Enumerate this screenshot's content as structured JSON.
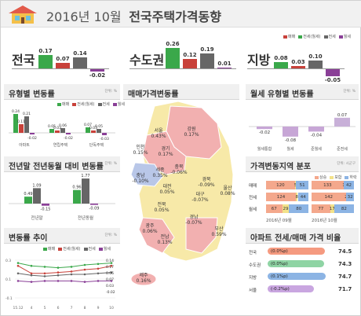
{
  "header": {
    "period": "2016년 10월",
    "title": "전국주택가격동향"
  },
  "colors": {
    "sale": "#3aa84a",
    "jeonse": "#c8413a",
    "monthly": "#666666",
    "neg": "#8a3f97",
    "up_strong": "#f2b0b0",
    "up_mid": "#f7e9a8",
    "down": "#b9c7e8"
  },
  "legend": {
    "sale": "매매",
    "jeonse": "전세(월세)",
    "monthly": "전세",
    "rent": "월세"
  },
  "top_summary": [
    {
      "label": "전국",
      "values": [
        "0.17",
        "0.07",
        "0.14",
        "-0.02"
      ]
    },
    {
      "label": "수도권",
      "values": [
        "0.26",
        "0.12",
        "0.19",
        "0.01"
      ]
    },
    {
      "label": "지방",
      "values": [
        "0.08",
        "0.03",
        "0.10",
        "-0.05"
      ]
    }
  ],
  "type_change": {
    "title": "유형별 변동률",
    "unit": "단위: %",
    "legend": [
      "매매",
      "전세(월세)",
      "전세",
      "월세"
    ],
    "categories": [
      "아파트",
      "연립주택",
      "단독주택"
    ],
    "values": [
      [
        "0.24",
        "0.11",
        "0.21",
        "-0.02"
      ],
      [
        "0.05",
        "0.03",
        "0.06",
        "-0.02"
      ],
      [
        "0.07",
        "0.03",
        "0.05",
        "-0.03"
      ]
    ]
  },
  "yoy": {
    "title": "전년말 전년동월 대비 변동률",
    "unit": "단위: %",
    "categories": [
      "전년말",
      "전년동월"
    ],
    "values": [
      [
        "0.49",
        "1.09",
        "-0.15"
      ],
      [
        "0.96",
        "1.77",
        "-0.09"
      ]
    ]
  },
  "trend": {
    "title": "변동률 추이",
    "unit": "단위: %",
    "legend": [
      "매매",
      "전세(월세)",
      "전세",
      "월세"
    ],
    "yticks": [
      "0.3",
      "0.1",
      "-0.1"
    ],
    "xlabels": [
      "15.12",
      "4",
      "5",
      "6",
      "7",
      "8",
      "9",
      "10"
    ],
    "labels": [
      "0.14",
      "0.17",
      "0.06",
      "0.07",
      "0.03",
      "-0.02"
    ]
  },
  "map": {
    "title": "매매가격변동률",
    "regions": [
      {
        "name": "서울",
        "val": "0.43%"
      },
      {
        "name": "강원",
        "val": "0.17%"
      },
      {
        "name": "인천",
        "val": "0.15%"
      },
      {
        "name": "경기",
        "val": "0.17%"
      },
      {
        "name": "충북",
        "val": "-0.06%"
      },
      {
        "name": "세종",
        "val": "0.35%"
      },
      {
        "name": "충남",
        "val": "-0.10%"
      },
      {
        "name": "경북",
        "val": "-0.09%"
      },
      {
        "name": "대전",
        "val": "0.05%"
      },
      {
        "name": "대구",
        "val": "-0.07%"
      },
      {
        "name": "전북",
        "val": "0.05%"
      },
      {
        "name": "울산",
        "val": "0.08%"
      },
      {
        "name": "경남",
        "val": "-0.07%"
      },
      {
        "name": "광주",
        "val": "0.06%"
      },
      {
        "name": "부산",
        "val": "0.59%"
      },
      {
        "name": "전남",
        "val": "0.13%"
      },
      {
        "name": "제주",
        "val": "0.16%"
      }
    ]
  },
  "rent_type": {
    "title": "월세 유형별 변동률",
    "unit": "단위: %",
    "categories": [
      "월세통합",
      "월세",
      "준월세",
      "준전세"
    ],
    "values": [
      "-0.02",
      "-0.08",
      "-0.04",
      "0.07"
    ]
  },
  "distribution": {
    "title": "가격변동지역 분포",
    "unit": "단위: 시군구",
    "legend": [
      "상승",
      "보합",
      "하락"
    ],
    "rows": [
      {
        "label": "매매",
        "sep": [
          "120",
          "5",
          "51"
        ],
        "oct": [
          "133",
          "1",
          "42"
        ]
      },
      {
        "label": "전세",
        "sep": [
          "124",
          "8",
          "44"
        ],
        "oct": [
          "142",
          "2",
          "32"
        ]
      },
      {
        "label": "월세",
        "sep": [
          "67",
          "29",
          "80"
        ],
        "oct": [
          "77",
          "17",
          "82"
        ]
      }
    ],
    "months": [
      "2016년 09월",
      "2016년 10월"
    ]
  },
  "apt_ratio": {
    "title": "아파트 전세/매매 가격 비율",
    "rows": [
      {
        "label": "전국",
        "change": "(0.0%p)",
        "value": "74.5"
      },
      {
        "label": "수도권",
        "change": "(0.0%p)",
        "value": "74.3"
      },
      {
        "label": "지방",
        "change": "(0.1%p)",
        "value": "74.7"
      },
      {
        "label": "서울",
        "change": "(-0.2%p)",
        "value": "71.7"
      }
    ]
  },
  "chart_data": [
    {
      "type": "bar",
      "title": "유형별 변동률",
      "categories": [
        "아파트",
        "연립주택",
        "단독주택"
      ],
      "series": [
        {
          "name": "매매",
          "values": [
            0.24,
            0.05,
            0.07
          ]
        },
        {
          "name": "전세(월세)",
          "values": [
            0.11,
            0.03,
            0.03
          ]
        },
        {
          "name": "전세",
          "values": [
            0.21,
            0.06,
            0.05
          ]
        },
        {
          "name": "월세",
          "values": [
            -0.02,
            -0.02,
            -0.03
          ]
        }
      ]
    },
    {
      "type": "bar",
      "title": "월세 유형별 변동률",
      "categories": [
        "월세통합",
        "월세",
        "준월세",
        "준전세"
      ],
      "values": [
        -0.02,
        -0.08,
        -0.04,
        0.07
      ]
    }
  ]
}
